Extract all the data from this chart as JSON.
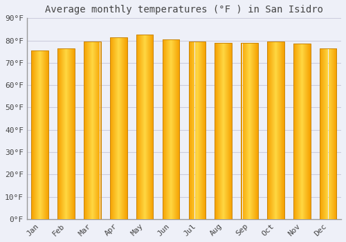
{
  "title": "Average monthly temperatures (°F ) in San Isidro",
  "months": [
    "Jan",
    "Feb",
    "Mar",
    "Apr",
    "May",
    "Jun",
    "Jul",
    "Aug",
    "Sep",
    "Oct",
    "Nov",
    "Dec"
  ],
  "values": [
    75.5,
    76.5,
    79.5,
    81.5,
    82.5,
    80.5,
    79.5,
    79.0,
    79.0,
    79.5,
    78.5,
    76.5
  ],
  "bar_color_center": "#FFD742",
  "bar_color_edge": "#F5A000",
  "bar_edge_color": "#C8850A",
  "background_color": "#EEF0F8",
  "grid_color": "#CCCCDD",
  "text_color": "#444444",
  "ylim": [
    0,
    90
  ],
  "yticks": [
    0,
    10,
    20,
    30,
    40,
    50,
    60,
    70,
    80,
    90
  ],
  "ytick_labels": [
    "0°F",
    "10°F",
    "20°F",
    "30°F",
    "40°F",
    "50°F",
    "60°F",
    "70°F",
    "80°F",
    "90°F"
  ],
  "title_fontsize": 10,
  "tick_fontsize": 8,
  "font_family": "monospace"
}
